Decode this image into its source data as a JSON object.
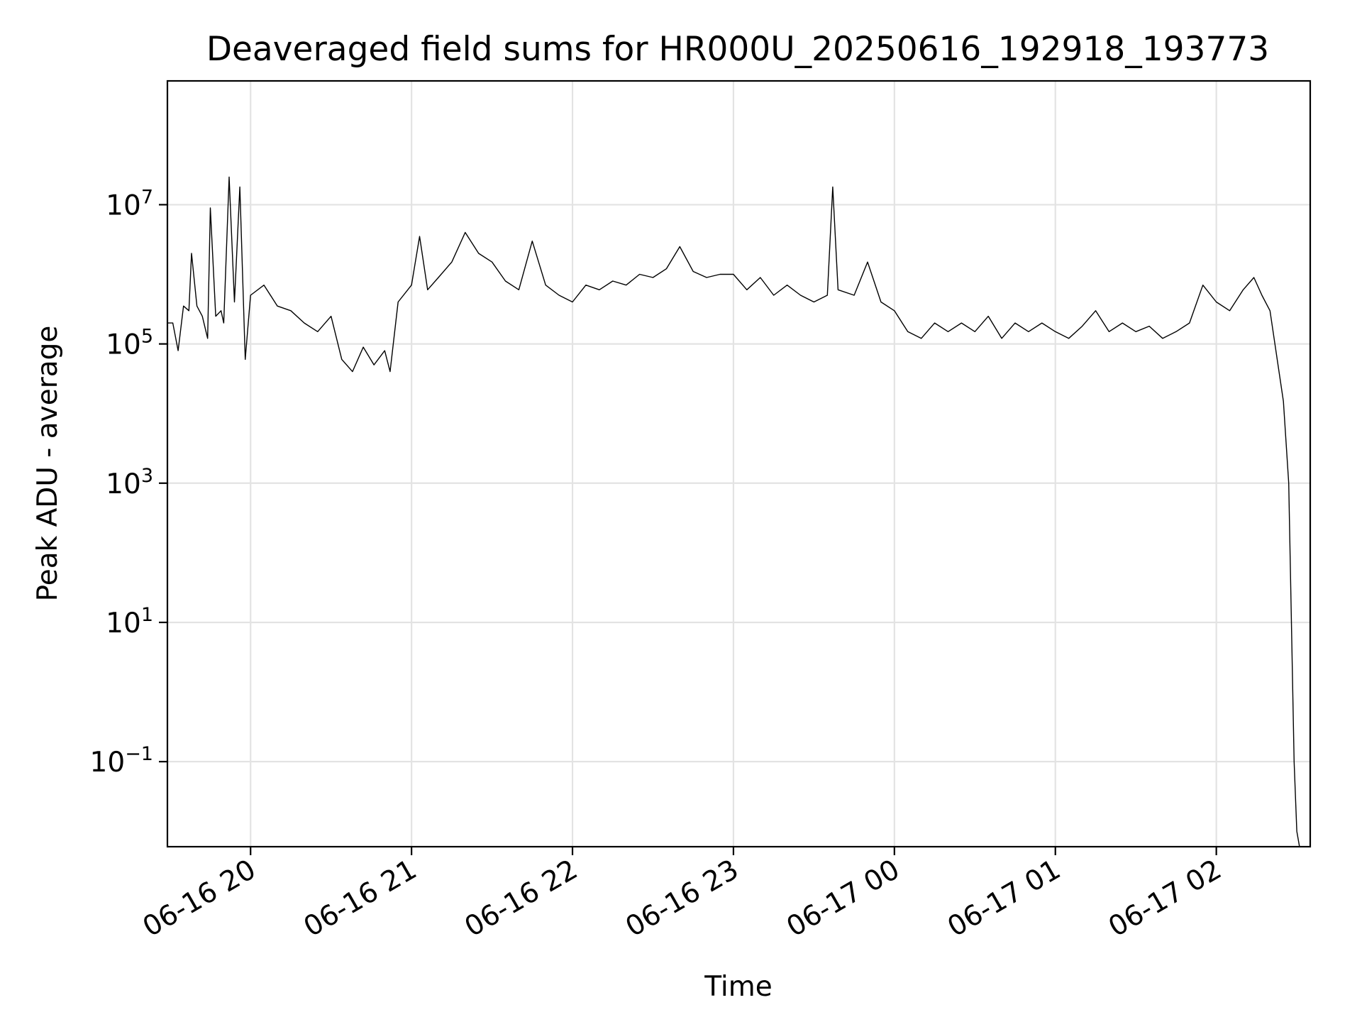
{
  "chart_data": {
    "type": "line",
    "title": "Deaveraged field sums for HR000U_20250616_192918_193773",
    "xlabel": "Time",
    "ylabel": "Peak ADU - average",
    "y_scale": "log",
    "grid": true,
    "colors": {
      "series": "#000000",
      "grid": "#e3e3e3",
      "frame": "#000000"
    },
    "xlim": [
      "2025-06-16 19:29",
      "2025-06-17 02:35"
    ],
    "ylim": [
      0.006,
      600000000
    ],
    "x_ticks": [
      {
        "value": "2025-06-16 20:00",
        "label": "06-16 20"
      },
      {
        "value": "2025-06-16 21:00",
        "label": "06-16 21"
      },
      {
        "value": "2025-06-16 22:00",
        "label": "06-16 22"
      },
      {
        "value": "2025-06-16 23:00",
        "label": "06-16 23"
      },
      {
        "value": "2025-06-17 00:00",
        "label": "06-17 00"
      },
      {
        "value": "2025-06-17 01:00",
        "label": "06-17 01"
      },
      {
        "value": "2025-06-17 02:00",
        "label": "06-17 02"
      }
    ],
    "y_ticks": [
      {
        "value": 0.1,
        "base": "10",
        "exp": "−1"
      },
      {
        "value": 10,
        "base": "10",
        "exp": "1"
      },
      {
        "value": 1000,
        "base": "10",
        "exp": "3"
      },
      {
        "value": 100000,
        "base": "10",
        "exp": "5"
      },
      {
        "value": 10000000,
        "base": "10",
        "exp": "7"
      }
    ],
    "series": [
      {
        "color": "#000000",
        "x": [
          "2025-06-16 19:29",
          "2025-06-16 19:31",
          "2025-06-16 19:33",
          "2025-06-16 19:35",
          "2025-06-16 19:37",
          "2025-06-16 19:38",
          "2025-06-16 19:40",
          "2025-06-16 19:42",
          "2025-06-16 19:44",
          "2025-06-16 19:45",
          "2025-06-16 19:47",
          "2025-06-16 19:49",
          "2025-06-16 19:50",
          "2025-06-16 19:52",
          "2025-06-16 19:54",
          "2025-06-16 19:56",
          "2025-06-16 19:58",
          "2025-06-16 20:00",
          "2025-06-16 20:05",
          "2025-06-16 20:10",
          "2025-06-16 20:15",
          "2025-06-16 20:20",
          "2025-06-16 20:25",
          "2025-06-16 20:30",
          "2025-06-16 20:34",
          "2025-06-16 20:38",
          "2025-06-16 20:42",
          "2025-06-16 20:46",
          "2025-06-16 20:50",
          "2025-06-16 20:52",
          "2025-06-16 20:55",
          "2025-06-16 21:00",
          "2025-06-16 21:03",
          "2025-06-16 21:06",
          "2025-06-16 21:10",
          "2025-06-16 21:15",
          "2025-06-16 21:20",
          "2025-06-16 21:25",
          "2025-06-16 21:30",
          "2025-06-16 21:35",
          "2025-06-16 21:40",
          "2025-06-16 21:45",
          "2025-06-16 21:50",
          "2025-06-16 21:55",
          "2025-06-16 22:00",
          "2025-06-16 22:05",
          "2025-06-16 22:10",
          "2025-06-16 22:15",
          "2025-06-16 22:20",
          "2025-06-16 22:25",
          "2025-06-16 22:30",
          "2025-06-16 22:35",
          "2025-06-16 22:40",
          "2025-06-16 22:45",
          "2025-06-16 22:50",
          "2025-06-16 22:55",
          "2025-06-16 23:00",
          "2025-06-16 23:05",
          "2025-06-16 23:10",
          "2025-06-16 23:15",
          "2025-06-16 23:20",
          "2025-06-16 23:25",
          "2025-06-16 23:30",
          "2025-06-16 23:35",
          "2025-06-16 23:37",
          "2025-06-16 23:39",
          "2025-06-16 23:45",
          "2025-06-16 23:50",
          "2025-06-16 23:55",
          "2025-06-17 00:00",
          "2025-06-17 00:05",
          "2025-06-17 00:10",
          "2025-06-17 00:15",
          "2025-06-17 00:20",
          "2025-06-17 00:25",
          "2025-06-17 00:30",
          "2025-06-17 00:35",
          "2025-06-17 00:40",
          "2025-06-17 00:45",
          "2025-06-17 00:50",
          "2025-06-17 00:55",
          "2025-06-17 01:00",
          "2025-06-17 01:05",
          "2025-06-17 01:10",
          "2025-06-17 01:15",
          "2025-06-17 01:20",
          "2025-06-17 01:25",
          "2025-06-17 01:30",
          "2025-06-17 01:35",
          "2025-06-17 01:40",
          "2025-06-17 01:45",
          "2025-06-17 01:50",
          "2025-06-17 01:55",
          "2025-06-17 02:00",
          "2025-06-17 02:05",
          "2025-06-17 02:10",
          "2025-06-17 02:14",
          "2025-06-17 02:17",
          "2025-06-17 02:20",
          "2025-06-17 02:23",
          "2025-06-17 02:25",
          "2025-06-17 02:27",
          "2025-06-17 02:28",
          "2025-06-17 02:29",
          "2025-06-17 02:30",
          "2025-06-17 02:31",
          "2025-06-17 02:32"
        ],
        "y": [
          200000,
          200000,
          80000,
          350000,
          300000,
          2000000,
          350000,
          250000,
          120000,
          9000000,
          250000,
          300000,
          200000,
          25000000,
          400000,
          18000000,
          60000,
          500000,
          700000,
          350000,
          300000,
          200000,
          150000,
          250000,
          60000,
          40000,
          90000,
          50000,
          80000,
          40000,
          400000,
          700000,
          3500000,
          600000,
          900000,
          1500000,
          4000000,
          2000000,
          1500000,
          800000,
          600000,
          3000000,
          700000,
          500000,
          400000,
          700000,
          600000,
          800000,
          700000,
          1000000,
          900000,
          1200000,
          2500000,
          1100000,
          900000,
          1000000,
          1000000,
          600000,
          900000,
          500000,
          700000,
          500000,
          400000,
          500000,
          18000000,
          600000,
          500000,
          1500000,
          400000,
          300000,
          150000,
          120000,
          200000,
          150000,
          200000,
          150000,
          250000,
          120000,
          200000,
          150000,
          200000,
          150000,
          120000,
          180000,
          300000,
          150000,
          200000,
          150000,
          180000,
          120000,
          150000,
          200000,
          700000,
          400000,
          300000,
          600000,
          900000,
          500000,
          300000,
          50000,
          15000,
          1000,
          10,
          0.1,
          0.01,
          0.006,
          0.006
        ]
      }
    ]
  }
}
